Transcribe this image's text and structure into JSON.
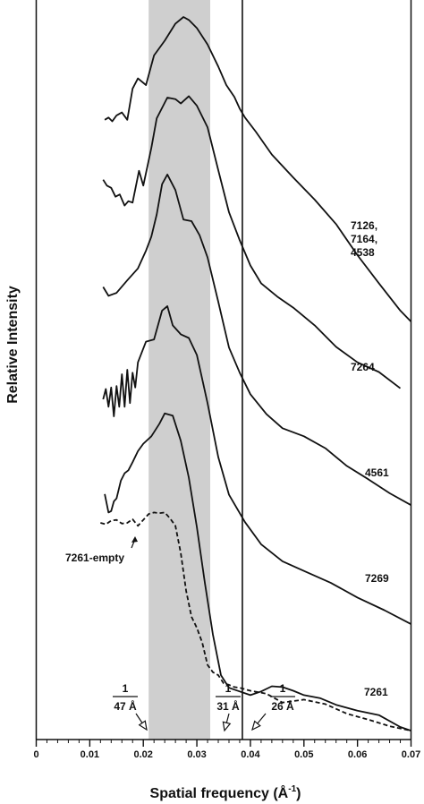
{
  "chart_data": {
    "type": "line",
    "xlabel": "Spatial frequency (Å",
    "xlabel_superscript": "-1",
    "xlabel_close": ")",
    "ylabel": "Relative Intensity",
    "xlim": [
      0,
      0.07
    ],
    "x_ticks": [
      "0",
      "0.01",
      "0.02",
      "0.03",
      "0.04",
      "0.05",
      "0.06",
      "0.07"
    ],
    "shaded_band": {
      "x_range": [
        0.021,
        0.0325
      ],
      "color": "#cfcfcf"
    },
    "vertical_line": 0.0385,
    "y_units": "relative (0 = baseline of bottom trace, 1 = top of plot)",
    "series": [
      {
        "name": "7126,\n7164,\n4538",
        "label_lines": [
          "7126,",
          "7164,",
          "4538"
        ],
        "style": "solid",
        "x": [
          0.0128,
          0.0135,
          0.0142,
          0.015,
          0.016,
          0.017,
          0.018,
          0.019,
          0.0205,
          0.022,
          0.024,
          0.026,
          0.0275,
          0.0285,
          0.03,
          0.032,
          0.034,
          0.0355,
          0.037,
          0.038,
          0.039,
          0.041,
          0.044,
          0.048,
          0.052,
          0.056,
          0.06,
          0.064,
          0.068,
          0.07
        ],
        "y": [
          0.838,
          0.841,
          0.836,
          0.844,
          0.848,
          0.838,
          0.88,
          0.894,
          0.885,
          0.925,
          0.945,
          0.968,
          0.977,
          0.973,
          0.962,
          0.94,
          0.91,
          0.885,
          0.869,
          0.853,
          0.841,
          0.822,
          0.791,
          0.76,
          0.73,
          0.697,
          0.655,
          0.617,
          0.58,
          0.565
        ]
      },
      {
        "name": "7264",
        "label_lines": [
          "7264"
        ],
        "style": "solid",
        "x": [
          0.0125,
          0.0132,
          0.014,
          0.0148,
          0.0156,
          0.0165,
          0.0172,
          0.018,
          0.0192,
          0.02,
          0.0215,
          0.0225,
          0.0245,
          0.026,
          0.027,
          0.0285,
          0.03,
          0.032,
          0.034,
          0.036,
          0.038,
          0.04,
          0.042,
          0.045,
          0.048,
          0.052,
          0.056,
          0.06,
          0.064,
          0.068
        ],
        "y": [
          0.757,
          0.749,
          0.746,
          0.734,
          0.737,
          0.722,
          0.728,
          0.726,
          0.769,
          0.749,
          0.8,
          0.84,
          0.868,
          0.866,
          0.86,
          0.87,
          0.857,
          0.828,
          0.77,
          0.713,
          0.675,
          0.641,
          0.617,
          0.599,
          0.584,
          0.56,
          0.531,
          0.51,
          0.497,
          0.475
        ]
      },
      {
        "name": "4561",
        "label_lines": [
          "4561"
        ],
        "style": "solid",
        "x": [
          0.0125,
          0.0135,
          0.015,
          0.017,
          0.019,
          0.0205,
          0.0215,
          0.0225,
          0.0235,
          0.0245,
          0.026,
          0.0275,
          0.029,
          0.0305,
          0.032,
          0.034,
          0.036,
          0.038,
          0.04,
          0.043,
          0.046,
          0.05,
          0.054,
          0.058,
          0.062,
          0.066,
          0.07
        ],
        "y": [
          0.612,
          0.6,
          0.604,
          0.621,
          0.637,
          0.661,
          0.68,
          0.71,
          0.751,
          0.764,
          0.743,
          0.703,
          0.701,
          0.682,
          0.652,
          0.592,
          0.53,
          0.496,
          0.467,
          0.44,
          0.421,
          0.41,
          0.394,
          0.37,
          0.352,
          0.333,
          0.317
        ]
      },
      {
        "name": "7269",
        "label_lines": [
          "7269"
        ],
        "style": "solid",
        "x": [
          0.0125,
          0.013,
          0.0135,
          0.014,
          0.0145,
          0.015,
          0.0155,
          0.016,
          0.0165,
          0.017,
          0.0175,
          0.018,
          0.0185,
          0.019,
          0.0205,
          0.022,
          0.0235,
          0.0245,
          0.0255,
          0.027,
          0.0285,
          0.03,
          0.032,
          0.034,
          0.036,
          0.039,
          0.042,
          0.046,
          0.05,
          0.055,
          0.06,
          0.065,
          0.07
        ],
        "y": [
          0.46,
          0.474,
          0.45,
          0.476,
          0.437,
          0.478,
          0.45,
          0.494,
          0.45,
          0.5,
          0.455,
          0.496,
          0.476,
          0.51,
          0.538,
          0.541,
          0.58,
          0.586,
          0.56,
          0.548,
          0.543,
          0.52,
          0.455,
          0.382,
          0.331,
          0.294,
          0.264,
          0.241,
          0.228,
          0.212,
          0.192,
          0.175,
          0.156
        ]
      },
      {
        "name": "7261",
        "label_lines": [
          "7261"
        ],
        "style": "solid",
        "x": [
          0.0128,
          0.0135,
          0.014,
          0.0145,
          0.015,
          0.0158,
          0.0165,
          0.0172,
          0.018,
          0.019,
          0.02,
          0.0215,
          0.023,
          0.024,
          0.0255,
          0.027,
          0.0285,
          0.03,
          0.0315,
          0.033,
          0.0345,
          0.036,
          0.038,
          0.04,
          0.042,
          0.044,
          0.046,
          0.048,
          0.05,
          0.053,
          0.056,
          0.06,
          0.064,
          0.068,
          0.07
        ],
        "y": [
          0.332,
          0.307,
          0.309,
          0.322,
          0.326,
          0.35,
          0.36,
          0.364,
          0.375,
          0.39,
          0.4,
          0.41,
          0.427,
          0.441,
          0.438,
          0.404,
          0.354,
          0.287,
          0.212,
          0.142,
          0.087,
          0.07,
          0.065,
          0.06,
          0.065,
          0.072,
          0.071,
          0.066,
          0.06,
          0.056,
          0.047,
          0.039,
          0.033,
          0.017,
          0.012
        ]
      },
      {
        "name": "7261-empty",
        "label_lines": [
          "7261-empty"
        ],
        "style": "dashed",
        "x": [
          0.012,
          0.013,
          0.014,
          0.015,
          0.016,
          0.017,
          0.018,
          0.019,
          0.02,
          0.021,
          0.022,
          0.023,
          0.024,
          0.025,
          0.026,
          0.027,
          0.028,
          0.029,
          0.03,
          0.031,
          0.032,
          0.033,
          0.034,
          0.035,
          0.036,
          0.037,
          0.038,
          0.04,
          0.043,
          0.046,
          0.05,
          0.054,
          0.058,
          0.062,
          0.066,
          0.07
        ],
        "y": [
          0.293,
          0.291,
          0.296,
          0.297,
          0.292,
          0.293,
          0.298,
          0.289,
          0.297,
          0.305,
          0.307,
          0.306,
          0.307,
          0.299,
          0.289,
          0.252,
          0.201,
          0.166,
          0.151,
          0.131,
          0.101,
          0.091,
          0.087,
          0.076,
          0.074,
          0.071,
          0.07,
          0.066,
          0.062,
          0.05,
          0.054,
          0.048,
          0.035,
          0.027,
          0.018,
          0.012
        ]
      }
    ],
    "annotations": [
      {
        "numerator": "1",
        "denominator": "47 Å",
        "x": 0.0212
      },
      {
        "numerator": "1",
        "denominator": "31 Å",
        "x": 0.0325
      },
      {
        "numerator": "1",
        "denominator": "26 Å",
        "x": 0.0385
      }
    ]
  }
}
